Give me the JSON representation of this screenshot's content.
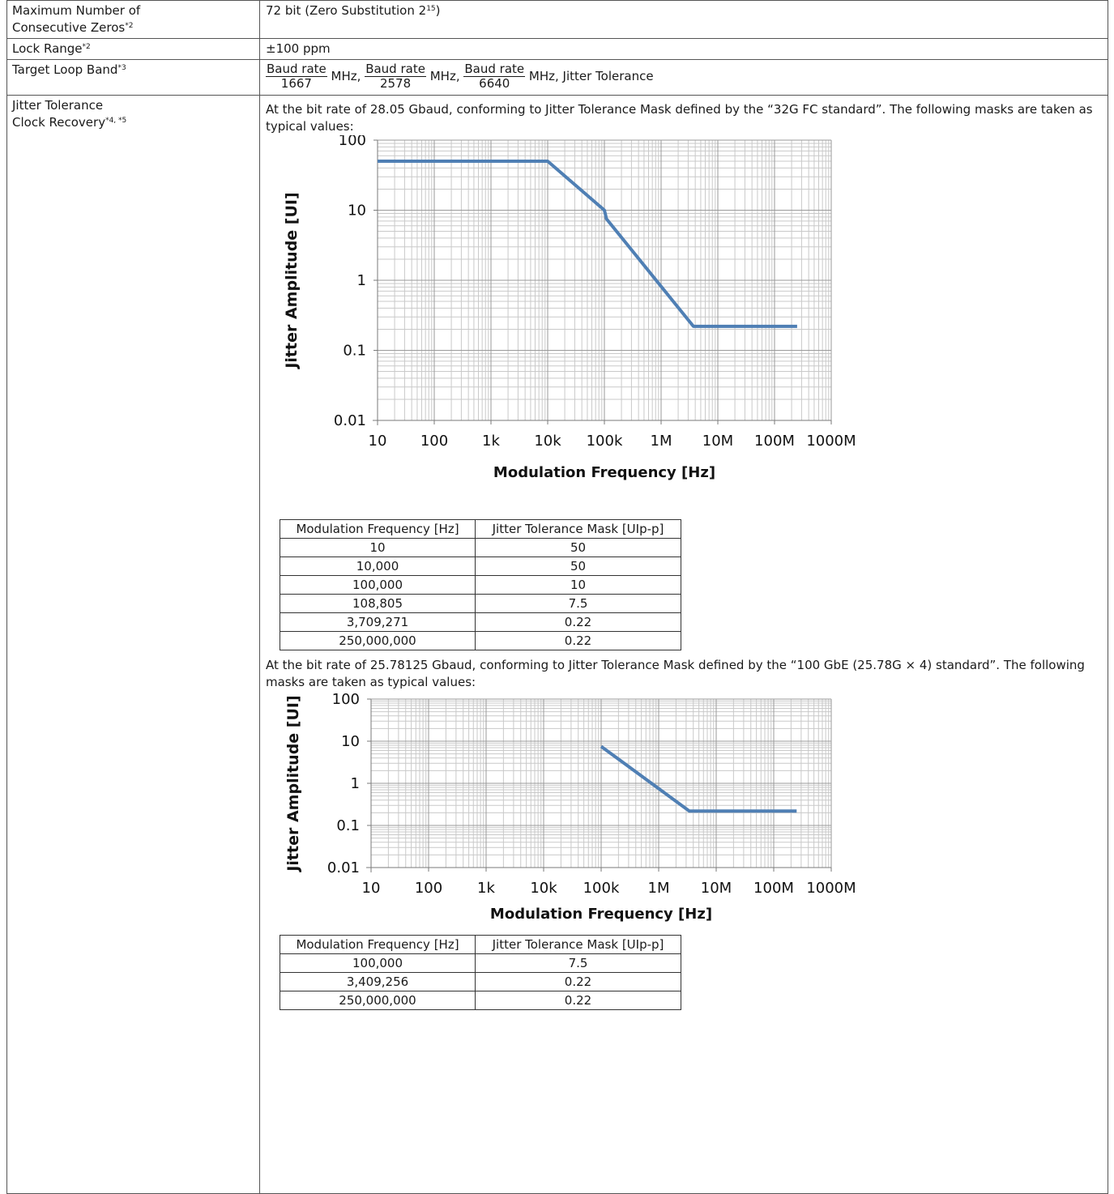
{
  "rows": [
    {
      "label_line1": "Maximum Number of",
      "label_line2": "Consecutive Zeros",
      "label_sup": "*2",
      "value_main": "72 bit (Zero Substitution 2",
      "value_sup": "15",
      "value_tail": ")"
    },
    {
      "label": "Lock Range",
      "label_sup": "*2",
      "value": "±100 ppm"
    },
    {
      "label": "Target Loop Band",
      "label_sup": "*3",
      "fractions": [
        {
          "numerator": "Baud rate",
          "denominator": "1667",
          "unit": "MHz,"
        },
        {
          "numerator": "Baud rate",
          "denominator": "2578",
          "unit": "MHz,"
        },
        {
          "numerator": "Baud rate",
          "denominator": "6640",
          "unit": "MHz, Jitter Tolerance"
        }
      ]
    },
    {
      "label_line1": "Jitter Tolerance",
      "label_line2": "Clock Recovery",
      "label_sup": "*4, *5"
    }
  ],
  "sections": [
    {
      "intro": "At the bit rate of 28.05 Gbaud, conforming to Jitter Tolerance Mask defined by the “32G FC standard”. The following masks are taken as typical values:",
      "table": {
        "headers": [
          "Modulation Frequency [Hz]",
          "Jitter Tolerance Mask [UIp-p]"
        ],
        "rows": [
          [
            "10",
            "50"
          ],
          [
            "10,000",
            "50"
          ],
          [
            "100,000",
            "10"
          ],
          [
            "108,805",
            "7.5"
          ],
          [
            "3,709,271",
            "0.22"
          ],
          [
            "250,000,000",
            "0.22"
          ]
        ]
      }
    },
    {
      "intro": "At the bit rate of 25.78125 Gbaud, conforming to Jitter Tolerance Mask defined by the “100 GbE (25.78G × 4) standard”. The following masks are taken as typical values:",
      "table": {
        "headers": [
          "Modulation Frequency [Hz]",
          "Jitter Tolerance Mask [UIp-p]"
        ],
        "rows": [
          [
            "100,000",
            "7.5"
          ],
          [
            "3,409,256",
            "0.22"
          ],
          [
            "250,000,000",
            "0.22"
          ]
        ]
      }
    }
  ],
  "chart_data": [
    {
      "type": "line",
      "xlabel": "Modulation Frequency [Hz]",
      "ylabel": "Jitter Amplitude [UI]",
      "x_scale": "log",
      "y_scale": "log",
      "xlim": [
        10,
        1000000000
      ],
      "ylim": [
        0.01,
        100
      ],
      "x_ticks": [
        "10",
        "100",
        "1k",
        "10k",
        "100k",
        "1M",
        "10M",
        "100M",
        "1000M"
      ],
      "y_ticks": [
        "100",
        "10",
        "1",
        "0.1",
        "0.01"
      ],
      "grid": true,
      "line_color": "#4f7fb4",
      "series": [
        {
          "x": [
            10,
            10000,
            100000,
            108805,
            3709271,
            250000000
          ],
          "y": [
            50,
            50,
            10,
            7.5,
            0.22,
            0.22
          ]
        }
      ]
    },
    {
      "type": "line",
      "xlabel": "Modulation Frequency [Hz]",
      "ylabel": "Jitter Amplitude [UI]",
      "x_scale": "log",
      "y_scale": "log",
      "xlim": [
        10,
        1000000000
      ],
      "ylim": [
        0.01,
        100
      ],
      "x_ticks": [
        "10",
        "100",
        "1k",
        "10k",
        "100k",
        "1M",
        "10M",
        "100M",
        "1000M"
      ],
      "y_ticks": [
        "100",
        "10",
        "1",
        "0.1",
        "0.01"
      ],
      "grid": true,
      "line_color": "#4f7fb4",
      "series": [
        {
          "x": [
            100000,
            3409256,
            250000000
          ],
          "y": [
            7.5,
            0.22,
            0.22
          ]
        }
      ]
    }
  ]
}
